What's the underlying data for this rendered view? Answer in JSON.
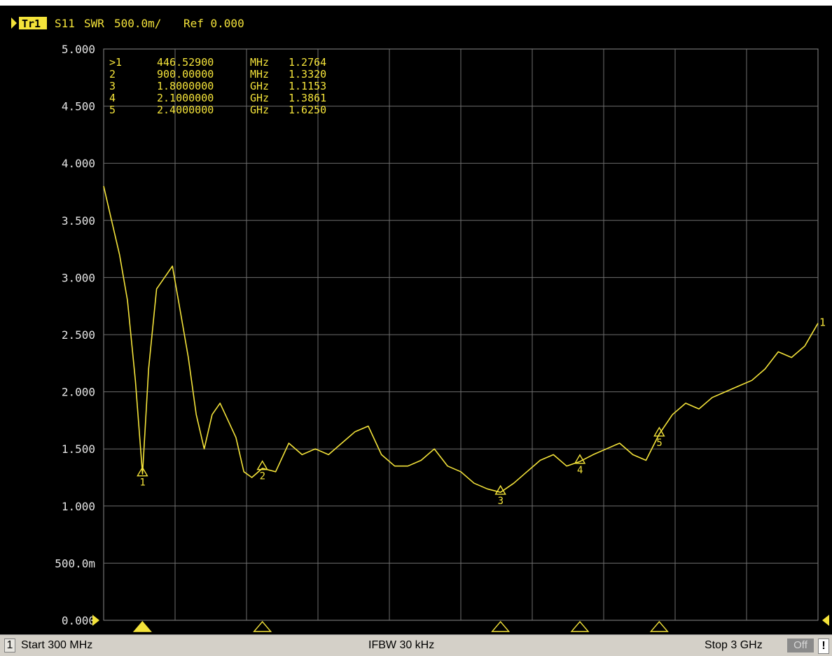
{
  "trace_header": {
    "trace_label": "Tr1",
    "parameter": "S11",
    "format": "SWR",
    "scale": "500.0m/",
    "reference": "Ref 0.000"
  },
  "status_bar": {
    "channel": "1",
    "start": "Start 300 MHz",
    "ifbw": "IFBW 30 kHz",
    "stop": "Stop 3 GHz",
    "off_label": "Off",
    "alert": "!"
  },
  "marker_table": [
    {
      "label": ">1",
      "frequency": "446.52900",
      "unit": "MHz",
      "value": "1.2764"
    },
    {
      "label": "2",
      "frequency": "900.00000",
      "unit": "MHz",
      "value": "1.3320"
    },
    {
      "label": "3",
      "frequency": "1.8000000",
      "unit": "GHz",
      "value": "1.1153"
    },
    {
      "label": "4",
      "frequency": "2.1000000",
      "unit": "GHz",
      "value": "1.3861"
    },
    {
      "label": "5",
      "frequency": "2.4000000",
      "unit": "GHz",
      "value": "1.6250"
    }
  ],
  "colors": {
    "trace": "#f4e33a",
    "grid": "#6e6e6e",
    "text": "#e4e4e4",
    "background": "#000000"
  },
  "chart_data": {
    "type": "line",
    "xlim": [
      300,
      3000
    ],
    "ylim": [
      0,
      5
    ],
    "x_unit": "MHz",
    "grid": true,
    "y_ticks": [
      "5.000",
      "4.500",
      "4.000",
      "3.500",
      "3.000",
      "2.500",
      "2.000",
      "1.500",
      "1.000",
      "500.0m",
      "0.000"
    ],
    "series": [
      {
        "x": [
          300,
          330,
          360,
          390,
          420,
          447,
          470,
          500,
          530,
          560,
          590,
          620,
          650,
          680,
          710,
          740,
          770,
          800,
          830,
          860,
          900,
          950,
          1000,
          1050,
          1100,
          1150,
          1200,
          1250,
          1300,
          1350,
          1400,
          1450,
          1500,
          1550,
          1600,
          1650,
          1700,
          1750,
          1800,
          1850,
          1900,
          1950,
          2000,
          2050,
          2100,
          2150,
          2200,
          2250,
          2300,
          2350,
          2400,
          2450,
          2500,
          2550,
          2600,
          2650,
          2700,
          2750,
          2800,
          2850,
          2900,
          2950,
          3000
        ],
        "y": [
          3.8,
          3.5,
          3.2,
          2.8,
          2.1,
          1.28,
          2.2,
          2.9,
          3.0,
          3.1,
          2.7,
          2.3,
          1.8,
          1.5,
          1.8,
          1.9,
          1.75,
          1.6,
          1.3,
          1.25,
          1.33,
          1.3,
          1.55,
          1.45,
          1.5,
          1.45,
          1.55,
          1.65,
          1.7,
          1.45,
          1.35,
          1.35,
          1.4,
          1.5,
          1.35,
          1.3,
          1.2,
          1.15,
          1.12,
          1.2,
          1.3,
          1.4,
          1.45,
          1.35,
          1.39,
          1.45,
          1.5,
          1.55,
          1.45,
          1.4,
          1.63,
          1.8,
          1.9,
          1.85,
          1.95,
          2.0,
          2.05,
          2.1,
          2.2,
          2.35,
          2.3,
          2.4,
          2.6
        ]
      }
    ],
    "markers": [
      {
        "label": "1",
        "x": 446.529,
        "y": 1.2764,
        "active": true
      },
      {
        "label": "2",
        "x": 900,
        "y": 1.332,
        "active": false
      },
      {
        "label": "3",
        "x": 1800,
        "y": 1.1153,
        "active": false
      },
      {
        "label": "4",
        "x": 2100,
        "y": 1.3861,
        "active": false
      },
      {
        "label": "5",
        "x": 2400,
        "y": 1.625,
        "active": false
      }
    ],
    "trace_end_label": "1"
  }
}
